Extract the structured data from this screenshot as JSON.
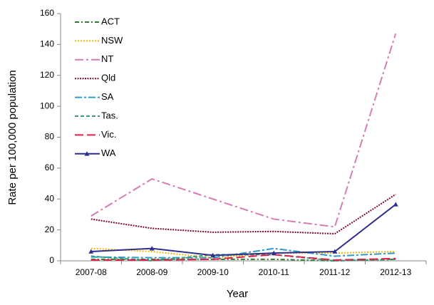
{
  "chart_data": {
    "type": "line",
    "x_label": "Year",
    "y_label": "Rate per 100,000 population",
    "categories": [
      "2007-08",
      "2008-09",
      "2009-10",
      "2010-11",
      "2011-12",
      "2012-13"
    ],
    "ylim": [
      0,
      160
    ],
    "yticks": [
      0,
      20,
      40,
      60,
      80,
      100,
      120,
      140,
      160
    ],
    "grid": false,
    "legend": "upper left",
    "series": [
      {
        "name": "ACT",
        "color": "#2e7d32",
        "dash": "6,3,2,3",
        "values": [
          1,
          1,
          1,
          1,
          0,
          1
        ]
      },
      {
        "name": "NSW",
        "color": "#f5b800",
        "dash": "2,2",
        "values": [
          8,
          6,
          2,
          5,
          5,
          6
        ]
      },
      {
        "name": "NT",
        "color": "#d67cb4",
        "dash": "12,4,3,4",
        "values": [
          29,
          53,
          40,
          27,
          22,
          147
        ]
      },
      {
        "name": "Qld",
        "color": "#7a0a2a",
        "dash": "2,1.5",
        "values": [
          27,
          21,
          18.5,
          19,
          17.5,
          43
        ]
      },
      {
        "name": "SA",
        "color": "#2e9bc8",
        "dash": "10,3,3,3",
        "values": [
          2.5,
          2,
          2,
          8,
          3,
          5
        ]
      },
      {
        "name": "Tas.",
        "color": "#2e9d7b",
        "dash": "5,3",
        "values": [
          3,
          0,
          4,
          4,
          0,
          1
        ]
      },
      {
        "name": "Vic.",
        "color": "#e0204a",
        "dash": "12,5",
        "values": [
          0.5,
          0.5,
          1,
          4,
          0.5,
          1.5
        ]
      },
      {
        "name": "WA",
        "color": "#2e2f8f",
        "dash": "none",
        "marker": "triangle",
        "values": [
          6,
          8,
          3.5,
          5,
          6,
          36.5
        ]
      }
    ]
  }
}
